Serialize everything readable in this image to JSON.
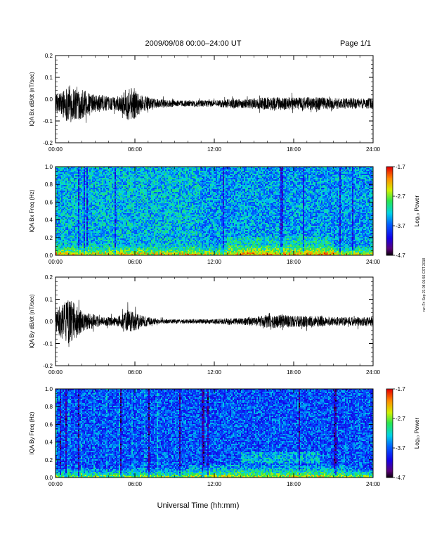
{
  "header": {
    "title": "2009/09/08  00:00–24:00 UT",
    "page": "Page 1/1"
  },
  "side_note": "run Fri Sep 21 08:01:56 CST 2018",
  "colorbar": {
    "label": "Log₁₀ Power",
    "ticks": [
      "-1.7",
      "-2.7",
      "-3.7",
      "-4.7"
    ],
    "range": [
      -4.7,
      -1.7
    ]
  },
  "xaxis": {
    "label": "Universal Time (hh:mm)",
    "ticks": [
      "00:00",
      "06:00",
      "12:00",
      "18:00",
      "24:00"
    ]
  },
  "chart_data": [
    {
      "type": "line",
      "ylabel": "IQA Bx dB/dt (nT/sec)",
      "xlim": [
        0,
        24
      ],
      "ylim": [
        -0.2,
        0.2
      ],
      "yticks": [
        "0.2",
        "0.1",
        "0.0",
        "-0.1",
        "-0.2"
      ],
      "baseline": -0.02,
      "envelope": {
        "x": [
          0,
          0.5,
          1,
          1.5,
          2,
          2.5,
          3,
          3.5,
          4,
          4.5,
          5,
          5.5,
          6,
          6.5,
          7,
          7.5,
          8,
          9,
          10,
          11,
          12,
          13,
          14,
          15,
          16,
          17,
          18,
          19,
          20,
          21,
          22,
          23,
          24
        ],
        "amp": [
          0.04,
          0.06,
          0.09,
          0.08,
          0.07,
          0.05,
          0.04,
          0.04,
          0.03,
          0.03,
          0.04,
          0.08,
          0.07,
          0.04,
          0.03,
          0.02,
          0.02,
          0.015,
          0.015,
          0.015,
          0.015,
          0.02,
          0.02,
          0.025,
          0.03,
          0.03,
          0.03,
          0.03,
          0.03,
          0.025,
          0.025,
          0.025,
          0.025
        ]
      }
    },
    {
      "type": "heatmap",
      "ylabel": "IQA Bx Freq (Hz)",
      "xlim": [
        0,
        24
      ],
      "ylim": [
        0.0,
        1.0
      ],
      "yticks": [
        "1.0",
        "0.8",
        "0.6",
        "0.4",
        "0.2",
        "0.0"
      ],
      "color_range": [
        -4.7,
        -1.7
      ]
    },
    {
      "type": "line",
      "ylabel": "IQA By dB/dt (nT/sec)",
      "xlim": [
        0,
        24
      ],
      "ylim": [
        -0.2,
        0.2
      ],
      "yticks": [
        "0.2",
        "0.1",
        "0.0",
        "-0.1",
        "-0.2"
      ],
      "baseline": 0.0,
      "envelope": {
        "x": [
          0,
          0.5,
          1,
          1.5,
          2,
          2.5,
          3,
          3.5,
          4,
          4.5,
          5,
          5.5,
          6,
          6.5,
          7,
          7.5,
          8,
          9,
          10,
          11,
          12,
          13,
          14,
          15,
          16,
          17,
          18,
          19,
          20,
          21,
          22,
          23,
          24
        ],
        "amp": [
          0.05,
          0.08,
          0.1,
          0.08,
          0.05,
          0.04,
          0.03,
          0.02,
          0.02,
          0.02,
          0.03,
          0.05,
          0.04,
          0.03,
          0.02,
          0.015,
          0.01,
          0.01,
          0.01,
          0.01,
          0.01,
          0.015,
          0.015,
          0.02,
          0.03,
          0.03,
          0.025,
          0.025,
          0.025,
          0.02,
          0.02,
          0.02,
          0.02
        ]
      }
    },
    {
      "type": "heatmap",
      "ylabel": "IQA By Freq (Hz)",
      "xlim": [
        0,
        24
      ],
      "ylim": [
        0.0,
        1.0
      ],
      "yticks": [
        "1.0",
        "0.8",
        "0.6",
        "0.4",
        "0.2",
        "0.0"
      ],
      "color_range": [
        -4.7,
        -1.7
      ]
    }
  ]
}
